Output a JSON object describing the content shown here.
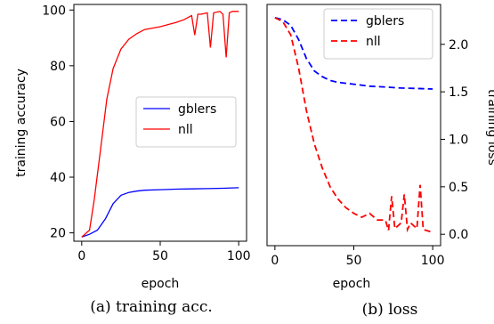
{
  "chart_data": [
    {
      "type": "line",
      "xlabel": "epoch",
      "ylabel": "training accuracy",
      "xlim": [
        -5,
        105
      ],
      "ylim": [
        17,
        102
      ],
      "xticks": [
        0,
        50,
        100
      ],
      "yticks": [
        20,
        40,
        60,
        80,
        100
      ],
      "legend_position": "center-right",
      "caption": "(a) training acc.",
      "series": [
        {
          "name": "gblers",
          "color": "#0000ff",
          "dash": "solid",
          "x": [
            0,
            5,
            10,
            15,
            20,
            25,
            30,
            35,
            40,
            50,
            60,
            70,
            80,
            90,
            100
          ],
          "y": [
            18.5,
            19.5,
            21,
            25,
            30.5,
            33.5,
            34.5,
            35,
            35.3,
            35.5,
            35.7,
            35.8,
            35.9,
            36,
            36.2
          ]
        },
        {
          "name": "nll",
          "color": "#ff0000",
          "dash": "solid",
          "x": [
            0,
            5,
            8,
            12,
            16,
            20,
            25,
            30,
            35,
            40,
            50,
            60,
            65,
            70,
            72,
            74,
            76,
            80,
            82,
            84,
            88,
            90,
            92,
            94,
            96,
            100
          ],
          "y": [
            18.5,
            21,
            32,
            50,
            68,
            79,
            86,
            89.5,
            91.5,
            93,
            94,
            95.5,
            96.5,
            98,
            91,
            98.5,
            98.5,
            99,
            86.5,
            99,
            99.5,
            98.5,
            83,
            99,
            99.5,
            99.5
          ]
        }
      ]
    },
    {
      "type": "line",
      "xlabel": "epoch",
      "ylabel": "training loss",
      "xlim": [
        -5,
        105
      ],
      "ylim": [
        -0.12,
        2.42
      ],
      "xticks": [
        0,
        50,
        100
      ],
      "yticks": [
        0.0,
        0.5,
        1.0,
        1.5,
        2.0
      ],
      "ytick_labels": [
        "0.0",
        "0.5",
        "1.0",
        "1.5",
        "2.0"
      ],
      "y_axis_side": "right",
      "legend_position": "top-right",
      "caption": "(b) loss",
      "series": [
        {
          "name": "gblers",
          "color": "#0000ff",
          "dash": "dashed",
          "x": [
            0,
            5,
            10,
            15,
            20,
            25,
            30,
            35,
            40,
            50,
            60,
            70,
            80,
            90,
            100
          ],
          "y": [
            2.28,
            2.26,
            2.2,
            2.05,
            1.85,
            1.72,
            1.66,
            1.62,
            1.6,
            1.58,
            1.56,
            1.55,
            1.54,
            1.535,
            1.53
          ]
        },
        {
          "name": "nll",
          "color": "#ff0000",
          "dash": "dashed",
          "x": [
            0,
            5,
            10,
            15,
            20,
            25,
            30,
            35,
            40,
            45,
            50,
            55,
            60,
            65,
            70,
            72,
            74,
            76,
            80,
            82,
            84,
            86,
            90,
            92,
            94,
            96,
            100
          ],
          "y": [
            2.28,
            2.24,
            2.1,
            1.75,
            1.3,
            0.95,
            0.7,
            0.5,
            0.37,
            0.28,
            0.22,
            0.18,
            0.22,
            0.15,
            0.15,
            0.04,
            0.4,
            0.06,
            0.12,
            0.42,
            0.05,
            0.12,
            0.06,
            0.52,
            0.05,
            0.04,
            0.02
          ]
        }
      ]
    }
  ]
}
